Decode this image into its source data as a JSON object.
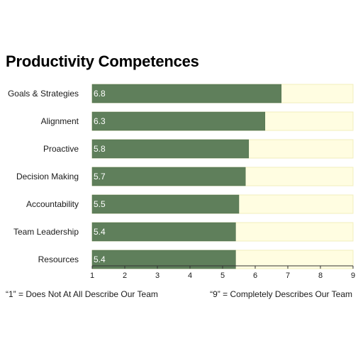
{
  "chart_data": {
    "type": "bar",
    "orientation": "horizontal",
    "title": "Productivity Competences",
    "categories": [
      "Goals & Strategies",
      "Alignment",
      "Proactive",
      "Decision Making",
      "Accountability",
      "Team Leadership",
      "Resources"
    ],
    "values": [
      6.8,
      6.3,
      5.8,
      5.7,
      5.5,
      5.4,
      5.4
    ],
    "value_labels": [
      "6.8",
      "6.3",
      "5.8",
      "5.7",
      "5.5",
      "5.4",
      "5.4"
    ],
    "xlim": [
      1,
      9
    ],
    "x_ticks": [
      "1",
      "2",
      "3",
      "4",
      "5",
      "6",
      "7",
      "8",
      "9"
    ],
    "xlabel": "",
    "ylabel": "",
    "grid": false,
    "legend": "none",
    "notes": {
      "left": "“1” = Does Not At All Describe Our Team",
      "right": "“9” = Completely Describes Our Team"
    },
    "colors": {
      "bar": "#5f7f5b",
      "bar_border": "#4a6a47",
      "track": "#fffde1",
      "track_border": "#f0eebc",
      "axis": "#333333"
    }
  }
}
